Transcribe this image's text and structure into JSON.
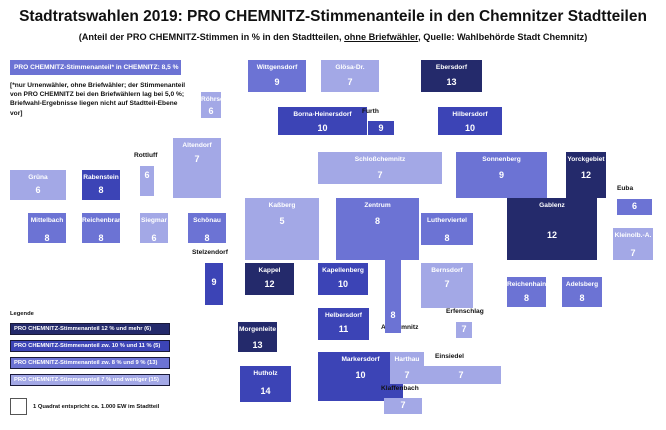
{
  "title": "Stadtratswahlen 2019: PRO CHEMNITZ-Stimmenanteile in den Chemnitzer Stadtteilen",
  "subtitle": {
    "part1": "(Anteil der PRO CHEMNITZ-Stimmen in % in den Stadtteilen, ",
    "underlined": "ohne Briefwähler",
    "part2": ", Quelle: Wahlbehörde Stadt Chemnitz)"
  },
  "average_label": "PRO CHEMNITZ-Stimmenanteil* in CHEMNITZ: 8,5 %",
  "note": "[*nur Urnenwähler, ohne Briefwähler; der Stimmenanteil von PRO CHEMNITZ bei den Briefwählern lag bei 5,0 %; Briefwahl-Ergebnisse liegen nicht auf Stadtteil-Ebene vor]",
  "legend": {
    "title": "Legende",
    "items": [
      {
        "label": "PRO CHEMNITZ-Stimmenanteil 12 % und mehr  (6)",
        "class": "c1",
        "color": "#242a6b"
      },
      {
        "label": "PRO CHEMNITZ-Stimmenanteil zw. 10 % und 11 % (5)",
        "class": "c2",
        "color": "#3c44b6"
      },
      {
        "label": "PRO CHEMNITZ-Stimmenanteil zw. 8 % und 9 % (13)",
        "class": "c3",
        "color": "#6c73d4"
      },
      {
        "label": "PRO CHEMNITZ-Stimmenanteil 7 % und weniger (15)",
        "class": "c4",
        "color": "#a3a8e6"
      }
    ]
  },
  "scale_label": "1 Quadrat entspricht ca. 1.000 EW im Stadtteil",
  "districts": [
    {
      "id": "wittgensdorf",
      "name": "Wittgensdorf",
      "value": "9"
    },
    {
      "id": "gloesa-draisdorf",
      "name": "Glösa-Dr.",
      "value": "7"
    },
    {
      "id": "ebersdorf",
      "name": "Ebersdorf",
      "value": "13"
    },
    {
      "id": "roehrsdorf",
      "name": "Röhrsdorf",
      "value": "6"
    },
    {
      "id": "borna-heinersdorf",
      "name": "Borna-Heinersdorf",
      "value": "10"
    },
    {
      "id": "furth",
      "name": "Furth",
      "value": "9"
    },
    {
      "id": "hilbersdorf",
      "name": "Hilbersdorf",
      "value": "10"
    },
    {
      "id": "altendorf",
      "name": "Altendorf",
      "value": "7"
    },
    {
      "id": "rottluff",
      "name": "Rottluff",
      "value": "6"
    },
    {
      "id": "schlosschemnitz",
      "name": "Schloßchemnitz",
      "value": "7"
    },
    {
      "id": "sonnenberg",
      "name": "Sonnenberg",
      "value": "9"
    },
    {
      "id": "yorckgebiet",
      "name": "Yorckgebiet",
      "value": "12"
    },
    {
      "id": "gruena",
      "name": "Grüna",
      "value": "6"
    },
    {
      "id": "rabenstein",
      "name": "Rabenstein",
      "value": "8"
    },
    {
      "id": "euba",
      "name": "Euba",
      "value": "6"
    },
    {
      "id": "mittelbach",
      "name": "Mittelbach",
      "value": "8"
    },
    {
      "id": "reichenbrand",
      "name": "Reichenbrand",
      "value": "8"
    },
    {
      "id": "siegmar",
      "name": "Siegmar",
      "value": "6"
    },
    {
      "id": "schoenau",
      "name": "Schönau",
      "value": "8"
    },
    {
      "id": "kassberg",
      "name": "Kaßberg",
      "value": "5"
    },
    {
      "id": "zentrum",
      "name": "Zentrum",
      "value": "8"
    },
    {
      "id": "lutherviertel",
      "name": "Lutherviertel",
      "value": "8"
    },
    {
      "id": "gablenz",
      "name": "Gablenz",
      "value": "12"
    },
    {
      "id": "kleinolbersdorf",
      "name": "Kleinolb.-A.",
      "value": "7"
    },
    {
      "id": "stelzendorf",
      "name": "Stelzendorf",
      "value": "9"
    },
    {
      "id": "kappel",
      "name": "Kappel",
      "value": "12"
    },
    {
      "id": "kapellenberg",
      "name": "Kapellenberg",
      "value": "10"
    },
    {
      "id": "bernsdorf",
      "name": "Bernsdorf",
      "value": "7"
    },
    {
      "id": "reichenhain",
      "name": "Reichenhain",
      "value": "8"
    },
    {
      "id": "adelsberg",
      "name": "Adelsberg",
      "value": "8"
    },
    {
      "id": "altchemnitz",
      "name": "Altchemnitz",
      "value": "8"
    },
    {
      "id": "helbersdorf",
      "name": "Helbersdorf",
      "value": "11"
    },
    {
      "id": "erfenschlag",
      "name": "Erfenschlag",
      "value": "7"
    },
    {
      "id": "morgenleite",
      "name": "Morgenleite",
      "value": "13"
    },
    {
      "id": "markersdorf",
      "name": "Markersdorf",
      "value": "10"
    },
    {
      "id": "harthau",
      "name": "Harthau",
      "value": "7"
    },
    {
      "id": "einsiedel",
      "name": "Einsiedel",
      "value": "7"
    },
    {
      "id": "hutholz",
      "name": "Hutholz",
      "value": "14"
    },
    {
      "id": "klaffenbach",
      "name": "Klaffenbach",
      "value": "7"
    }
  ]
}
